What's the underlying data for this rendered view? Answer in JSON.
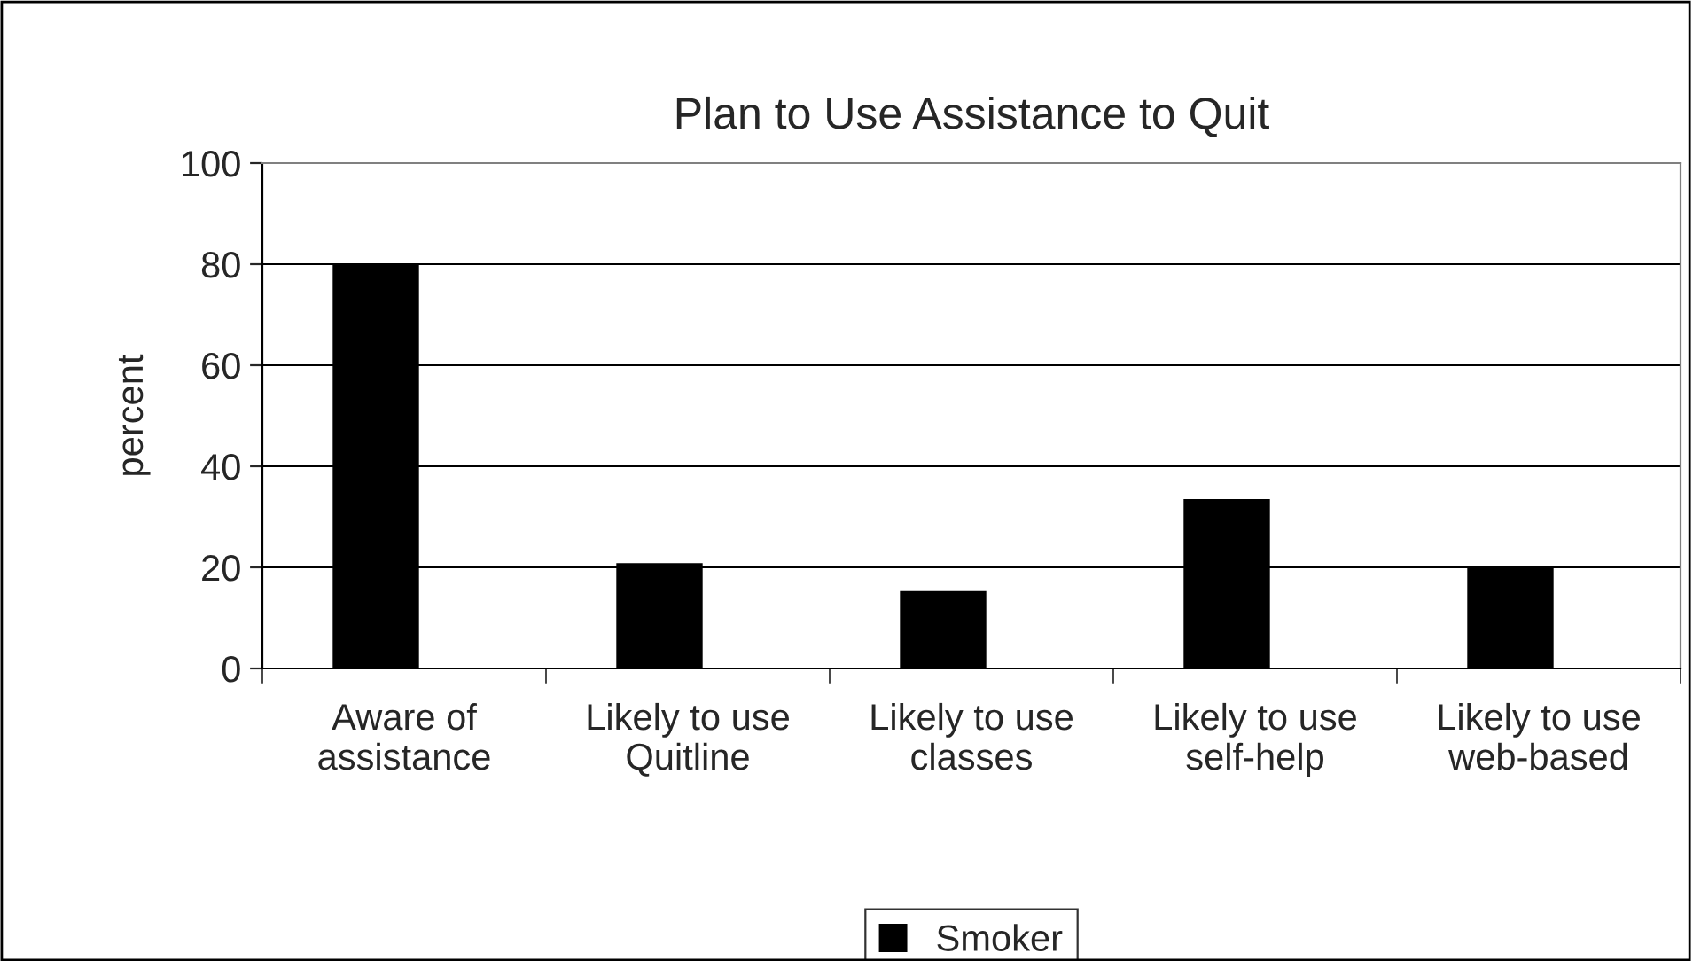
{
  "chart_data": {
    "type": "bar",
    "title": "Plan to Use Assistance to Quit",
    "ylabel": "percent",
    "categories": [
      "Aware of\nassistance",
      "Likely to use\nQuitline",
      "Likely to use\nclasses",
      "Likely to use\nself-help",
      "Likely to use\nweb-based"
    ],
    "series": [
      {
        "name": "Smoker",
        "color": "#000000",
        "values": [
          80,
          20.7,
          15.2,
          33.4,
          20
        ]
      }
    ],
    "ylim": [
      0,
      100
    ],
    "yticks": [
      0,
      20,
      40,
      60,
      80,
      100
    ],
    "grid": "y",
    "legend": "bottom"
  }
}
